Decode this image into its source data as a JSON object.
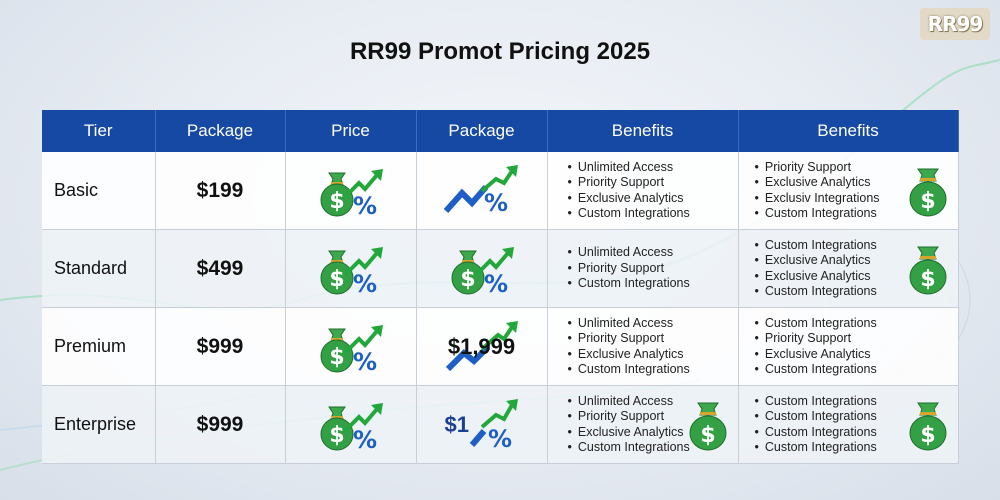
{
  "brand": {
    "logo_text": "RR99"
  },
  "title": "RR99 Promot Pricing 2025",
  "table": {
    "headers": [
      "Tier",
      "Package",
      "Price",
      "Package",
      "Benefits",
      "Benefits"
    ],
    "rows": [
      {
        "tier": "Basic",
        "package": "$199",
        "price_icon": "money-bag-percent-icon",
        "package_icon": "trend-percent-icon",
        "package_overlay": "",
        "benefits_a": [
          "Unlimited Access",
          "Priority Support",
          "Exclusive Analytics",
          "Custom Integrations"
        ],
        "benefits_b": [
          "Priority Support",
          "Exclusive Analytics",
          "Exclusiv Integrations",
          "Custom Integrations"
        ]
      },
      {
        "tier": "Standard",
        "package": "$499",
        "price_icon": "money-bag-percent-icon",
        "package_icon": "money-bag-percent-icon",
        "package_overlay": "",
        "benefits_a": [
          "Unlimited Access",
          "Priority Support",
          "Custom Integrations"
        ],
        "benefits_b": [
          "Custom Integrations",
          "Exclusive Analytics",
          "Exclusive Analytics",
          "Custom Integrations"
        ]
      },
      {
        "tier": "Premium",
        "package": "$999",
        "price_icon": "money-bag-percent-icon",
        "package_icon": "trend-arrow-icon",
        "package_overlay": "$1,999",
        "benefits_a": [
          "Unlimited Access",
          "Priority Support",
          "Exclusive Analytics",
          "Custom Integrations"
        ],
        "benefits_b": [
          "Custom Integrations",
          "Priority Support",
          "Exclusive Analytics",
          "Custom Integrations"
        ]
      },
      {
        "tier": "Enterprise",
        "package": "$999",
        "price_icon": "money-bag-percent-icon",
        "package_icon": "trend-percent-icon",
        "package_overlay": "$1",
        "benefits_a": [
          "Unlimited Access",
          "Priority Support",
          "Exclusive Analytics",
          "Custom Integrations"
        ],
        "benefits_b": [
          "Custom Integrations",
          "Custom Integrations",
          "Custom Integrations",
          "Custom Integrations"
        ]
      }
    ]
  },
  "colors": {
    "header_blue": "#1649a3",
    "money_green": "#2e9a3e",
    "percent_blue": "#1d5fc4",
    "arrow_green": "#22a83a"
  }
}
